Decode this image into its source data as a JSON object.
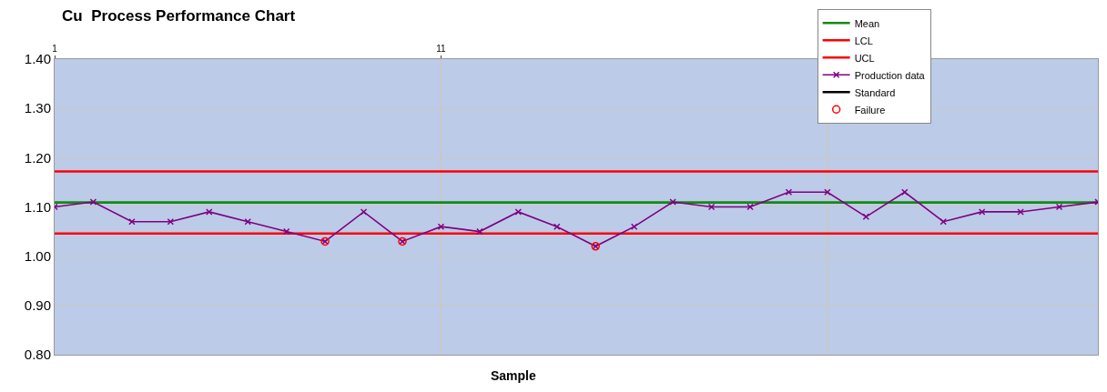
{
  "chart_data": {
    "type": "line",
    "title": "Cu  Process Performance Chart",
    "xlabel": "Sample",
    "x": [
      1,
      2,
      3,
      4,
      5,
      6,
      7,
      8,
      9,
      10,
      11,
      12,
      13,
      14,
      15,
      16,
      17,
      18,
      19,
      20,
      21,
      22,
      23,
      24,
      25,
      26,
      27,
      28
    ],
    "xlim": [
      1,
      28
    ],
    "xticks": [
      1,
      11,
      {
        "value": 21,
        "label": null
      }
    ],
    "ylim": [
      0.8,
      1.4
    ],
    "yticks": [
      {
        "value": 0.8,
        "label": "0.80"
      },
      {
        "value": 0.9,
        "label": "0.90"
      },
      {
        "value": 1.0,
        "label": "1.00"
      },
      {
        "value": 1.1,
        "label": "1.10"
      },
      {
        "value": 1.2,
        "label": "1.20"
      },
      {
        "value": 1.3,
        "label": "1.30"
      },
      {
        "value": 1.4,
        "label": "1.40"
      }
    ],
    "grid": true,
    "legend": "top right",
    "series": [
      {
        "name": "Mean",
        "color": "#138a13",
        "marker": "none",
        "values": [
          1.109,
          1.109,
          1.109,
          1.109,
          1.109,
          1.109,
          1.109,
          1.109,
          1.109,
          1.109,
          1.109,
          1.109,
          1.109,
          1.109,
          1.109,
          1.109,
          1.109,
          1.109,
          1.109,
          1.109,
          1.109,
          1.109,
          1.109,
          1.109,
          1.109,
          1.109,
          1.109,
          1.109
        ]
      },
      {
        "name": "LCL",
        "color": "#ff0000",
        "marker": "none",
        "values": [
          1.046,
          1.046,
          1.046,
          1.046,
          1.046,
          1.046,
          1.046,
          1.046,
          1.046,
          1.046,
          1.046,
          1.046,
          1.046,
          1.046,
          1.046,
          1.046,
          1.046,
          1.046,
          1.046,
          1.046,
          1.046,
          1.046,
          1.046,
          1.046,
          1.046,
          1.046,
          1.046,
          1.046
        ]
      },
      {
        "name": "UCL",
        "color": "#ff0000",
        "marker": "none",
        "values": [
          1.172,
          1.172,
          1.172,
          1.172,
          1.172,
          1.172,
          1.172,
          1.172,
          1.172,
          1.172,
          1.172,
          1.172,
          1.172,
          1.172,
          1.172,
          1.172,
          1.172,
          1.172,
          1.172,
          1.172,
          1.172,
          1.172,
          1.172,
          1.172,
          1.172,
          1.172,
          1.172,
          1.172
        ]
      },
      {
        "name": "Production data",
        "color": "#800080",
        "marker": "cross",
        "values": [
          1.1,
          1.11,
          1.07,
          1.07,
          1.09,
          1.07,
          1.05,
          1.03,
          1.09,
          1.03,
          1.06,
          1.05,
          1.09,
          1.06,
          1.02,
          1.06,
          1.11,
          1.1,
          1.1,
          1.13,
          1.13,
          1.08,
          1.13,
          1.07,
          1.09,
          1.09,
          1.1,
          1.11
        ]
      },
      {
        "name": "Standard",
        "color": "#000000",
        "marker": "none",
        "values": [
          null,
          null,
          null,
          null,
          null,
          null,
          null,
          null,
          null,
          null,
          null,
          null,
          null,
          null,
          null,
          null,
          null,
          null,
          null,
          null,
          null,
          null,
          null,
          null,
          null,
          null,
          null,
          null
        ]
      },
      {
        "name": "Failure",
        "color": "#ff0000",
        "type": "scatter",
        "marker": "circle",
        "values": [
          null,
          null,
          null,
          null,
          null,
          null,
          null,
          1.03,
          null,
          1.03,
          null,
          null,
          null,
          null,
          1.02,
          null,
          null,
          null,
          null,
          null,
          null,
          null,
          null,
          null,
          null,
          null,
          null,
          null
        ]
      }
    ]
  }
}
